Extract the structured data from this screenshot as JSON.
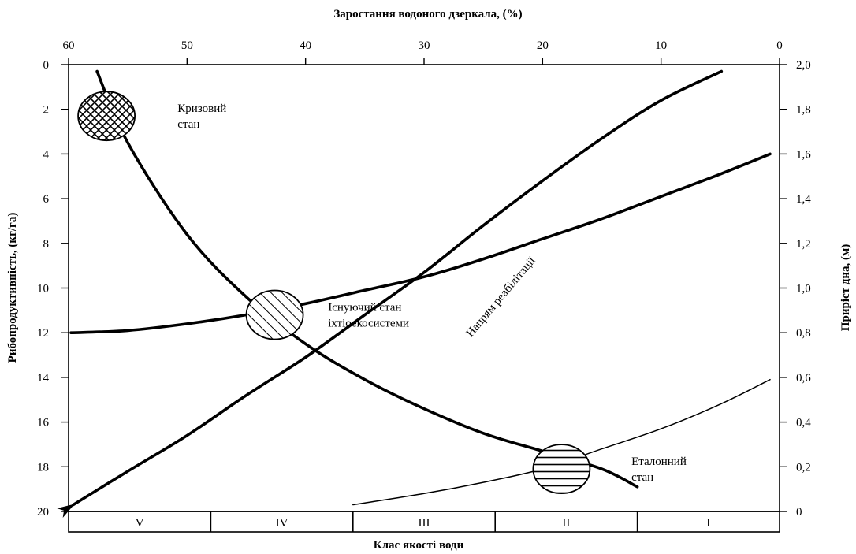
{
  "chart_data": {
    "type": "line",
    "title": "",
    "top_axis": {
      "label": "Заростання водоного дзеркала, (%)",
      "range": [
        60,
        0
      ],
      "ticks": [
        "60",
        "50",
        "40",
        "30",
        "20",
        "10",
        "0"
      ]
    },
    "left_axis": {
      "label": "Рибопродуктивність, (кг/га)",
      "range": [
        0,
        20
      ],
      "inverted": true,
      "ticks": [
        "0",
        "2",
        "4",
        "6",
        "8",
        "10",
        "12",
        "14",
        "16",
        "18",
        "20"
      ]
    },
    "right_axis": {
      "label": "Приріст дна, (м)",
      "range": [
        0,
        2.0
      ],
      "ticks": [
        "0",
        "0,2",
        "0,4",
        "0,6",
        "0,8",
        "1,0",
        "1,2",
        "1,4",
        "1,6",
        "1,8",
        "2,0"
      ]
    },
    "bottom_axis": {
      "label": "Клас якості води",
      "classes": [
        "V",
        "IV",
        "III",
        "II",
        "I"
      ]
    },
    "series": [
      {
        "axis": "top-left",
        "style": "bold",
        "points": [
          [
            57.6,
            0.3
          ],
          [
            55,
            3.5
          ],
          [
            50,
            7.6
          ],
          [
            45,
            10.4
          ],
          [
            40,
            12.5
          ],
          [
            35,
            14.1
          ],
          [
            30,
            15.4
          ],
          [
            25,
            16.5
          ],
          [
            20,
            17.3
          ],
          [
            15,
            18.1
          ],
          [
            12,
            18.9
          ]
        ]
      },
      {
        "axis": "top-left",
        "style": "bold",
        "points": [
          [
            59.8,
            12.0
          ],
          [
            55,
            11.9
          ],
          [
            50,
            11.6
          ],
          [
            45,
            11.2
          ],
          [
            40,
            10.7
          ],
          [
            35,
            10.1
          ],
          [
            30,
            9.5
          ],
          [
            25,
            8.7
          ],
          [
            20,
            7.8
          ],
          [
            15,
            6.9
          ],
          [
            10,
            5.9
          ],
          [
            5,
            4.9
          ],
          [
            0.8,
            4.0
          ]
        ]
      },
      {
        "axis": "top-right",
        "style": "bold-arrow",
        "arrow_at": "start",
        "points": [
          [
            59.6,
            0.03
          ],
          [
            55,
            0.18
          ],
          [
            50,
            0.34
          ],
          [
            45,
            0.52
          ],
          [
            40,
            0.69
          ],
          [
            35,
            0.88
          ],
          [
            30,
            1.07
          ],
          [
            25,
            1.28
          ],
          [
            20,
            1.48
          ],
          [
            15,
            1.67
          ],
          [
            10,
            1.84
          ],
          [
            4.9,
            1.97
          ]
        ]
      },
      {
        "axis": "top-right",
        "style": "thin",
        "points": [
          [
            36,
            0.03
          ],
          [
            30,
            0.08
          ],
          [
            25,
            0.13
          ],
          [
            20,
            0.19
          ],
          [
            15,
            0.28
          ],
          [
            10,
            0.37
          ],
          [
            5,
            0.48
          ],
          [
            0.8,
            0.59
          ]
        ]
      }
    ],
    "annotations": [
      {
        "text": [
          "Кризовий",
          "стан"
        ],
        "x": 56.8,
        "y": 2.3,
        "pattern": "crosshatch",
        "label_at": [
          50.8,
          2.3
        ]
      },
      {
        "text": [
          "Існуючий стан",
          "іхтіоекосистеми"
        ],
        "x": 42.6,
        "y": 11.2,
        "pattern": "diagonal",
        "label_at": [
          38.1,
          11.2
        ]
      },
      {
        "text": [
          "Еталонний",
          "стан"
        ],
        "x": 18.4,
        "y": 18.1,
        "pattern": "horizontal",
        "label_at": [
          12.5,
          18.1
        ]
      }
    ],
    "rotated_label": {
      "text": "Напрям реабілітації",
      "x": 23.3,
      "y": 10.5,
      "angle": -50
    },
    "grid": false,
    "legend": "none"
  }
}
